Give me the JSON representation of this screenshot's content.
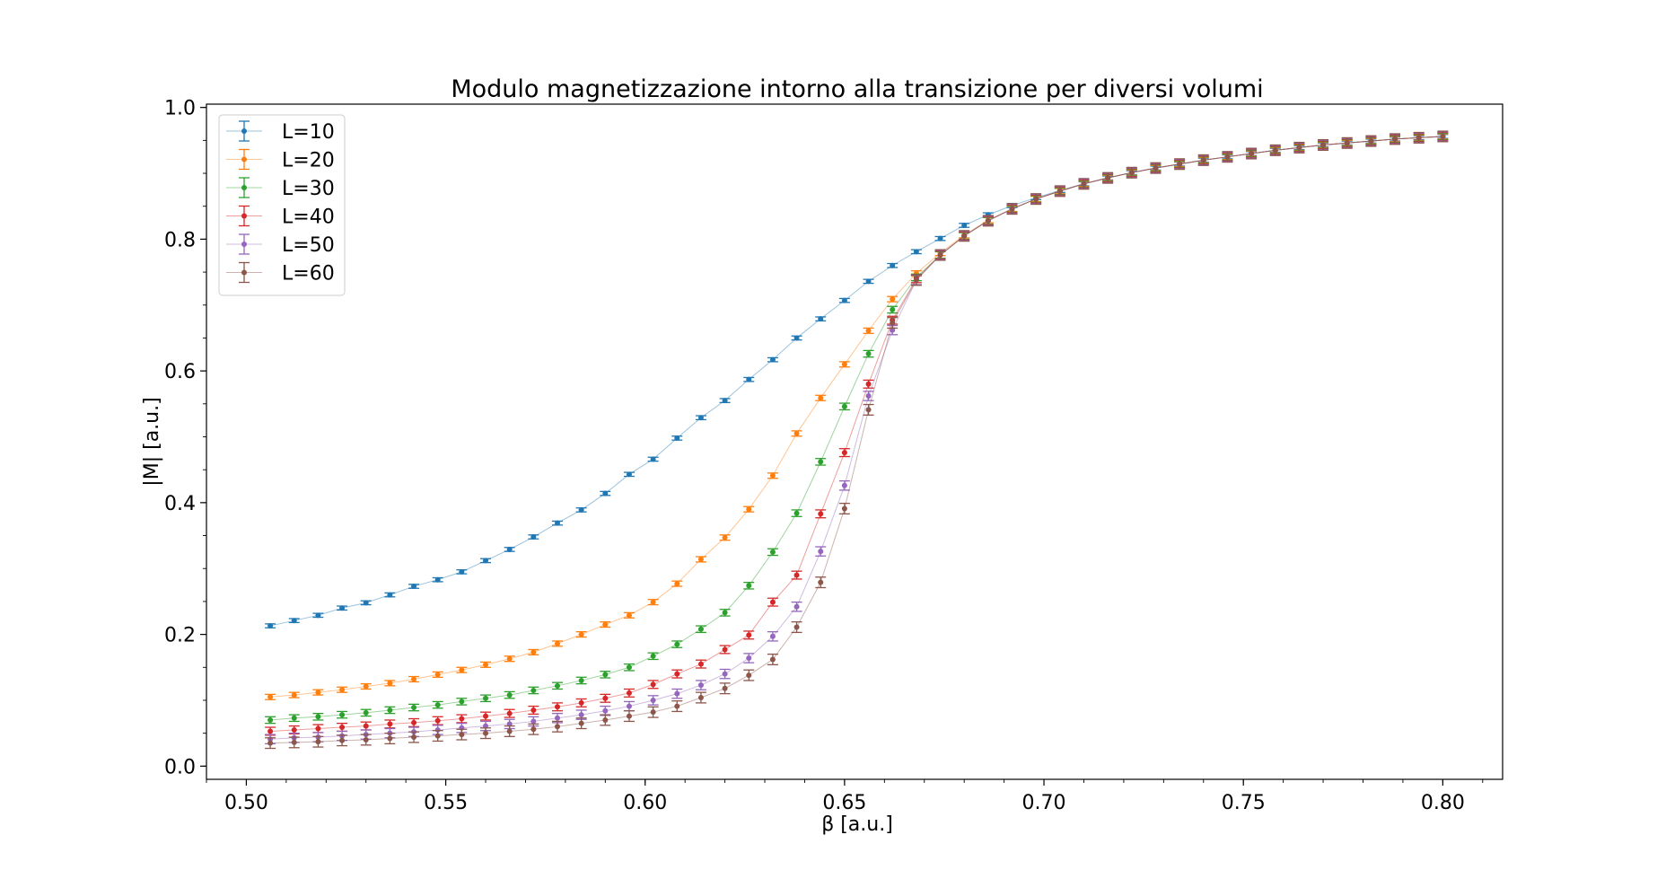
{
  "chart_data": {
    "type": "scatter",
    "title": "Modulo magnetizzazione intorno alla transizione per diversi volumi",
    "xlabel": "β [a.u.]",
    "ylabel": "|M| [a.u.]",
    "xlim": [
      0.49,
      0.815
    ],
    "ylim": [
      -0.02,
      1.005
    ],
    "xticks": [
      0.5,
      0.55,
      0.6,
      0.65,
      0.7,
      0.75,
      0.8
    ],
    "xtick_labels": [
      "0.50",
      "0.55",
      "0.60",
      "0.65",
      "0.70",
      "0.75",
      "0.80"
    ],
    "yticks": [
      0.0,
      0.2,
      0.4,
      0.6,
      0.8,
      1.0
    ],
    "ytick_labels": [
      "0.0",
      "0.2",
      "0.4",
      "0.6",
      "0.8",
      "1.0"
    ],
    "grid": false,
    "legend_position": "top-left",
    "series": [
      {
        "name": "L=10",
        "color": "#1f77b4",
        "x": [
          0.506,
          0.512,
          0.518,
          0.524,
          0.53,
          0.536,
          0.542,
          0.548,
          0.554,
          0.56,
          0.566,
          0.572,
          0.578,
          0.584,
          0.59,
          0.596,
          0.602,
          0.608,
          0.614,
          0.62,
          0.626,
          0.632,
          0.638,
          0.644,
          0.65,
          0.656,
          0.662,
          0.668,
          0.674,
          0.68,
          0.686,
          0.692,
          0.698,
          0.704,
          0.71,
          0.716,
          0.722,
          0.728,
          0.734,
          0.74,
          0.746,
          0.752,
          0.758,
          0.764,
          0.77,
          0.776,
          0.782,
          0.788,
          0.794,
          0.8
        ],
        "y": [
          0.213,
          0.221,
          0.229,
          0.24,
          0.248,
          0.26,
          0.273,
          0.283,
          0.295,
          0.312,
          0.329,
          0.348,
          0.369,
          0.389,
          0.414,
          0.443,
          0.466,
          0.498,
          0.529,
          0.555,
          0.587,
          0.617,
          0.65,
          0.679,
          0.707,
          0.736,
          0.76,
          0.781,
          0.801,
          0.821,
          0.837,
          0.851,
          0.863,
          0.874,
          0.884,
          0.893,
          0.901,
          0.908,
          0.914,
          0.92,
          0.925,
          0.93,
          0.935,
          0.939,
          0.943,
          0.946,
          0.949,
          0.952,
          0.954,
          0.956
        ],
        "err": 0.003
      },
      {
        "name": "L=20",
        "color": "#ff7f0e",
        "x": [
          0.506,
          0.512,
          0.518,
          0.524,
          0.53,
          0.536,
          0.542,
          0.548,
          0.554,
          0.56,
          0.566,
          0.572,
          0.578,
          0.584,
          0.59,
          0.596,
          0.602,
          0.608,
          0.614,
          0.62,
          0.626,
          0.632,
          0.638,
          0.644,
          0.65,
          0.656,
          0.662,
          0.668,
          0.674,
          0.68,
          0.686,
          0.692,
          0.698,
          0.704,
          0.71,
          0.716,
          0.722,
          0.728,
          0.734,
          0.74,
          0.746,
          0.752,
          0.758,
          0.764,
          0.77,
          0.776,
          0.782,
          0.788,
          0.794,
          0.8
        ],
        "y": [
          0.105,
          0.108,
          0.112,
          0.116,
          0.121,
          0.126,
          0.132,
          0.139,
          0.146,
          0.154,
          0.163,
          0.173,
          0.186,
          0.2,
          0.215,
          0.229,
          0.249,
          0.277,
          0.314,
          0.347,
          0.39,
          0.441,
          0.505,
          0.559,
          0.61,
          0.661,
          0.709,
          0.748,
          0.779,
          0.806,
          0.829,
          0.846,
          0.861,
          0.873,
          0.884,
          0.893,
          0.901,
          0.908,
          0.914,
          0.92,
          0.925,
          0.93,
          0.935,
          0.939,
          0.943,
          0.946,
          0.949,
          0.952,
          0.954,
          0.956
        ],
        "err": 0.004
      },
      {
        "name": "L=30",
        "color": "#2ca02c",
        "x": [
          0.506,
          0.512,
          0.518,
          0.524,
          0.53,
          0.536,
          0.542,
          0.548,
          0.554,
          0.56,
          0.566,
          0.572,
          0.578,
          0.584,
          0.59,
          0.596,
          0.602,
          0.608,
          0.614,
          0.62,
          0.626,
          0.632,
          0.638,
          0.644,
          0.65,
          0.656,
          0.662,
          0.668,
          0.674,
          0.68,
          0.686,
          0.692,
          0.698,
          0.704,
          0.71,
          0.716,
          0.722,
          0.728,
          0.734,
          0.74,
          0.746,
          0.752,
          0.758,
          0.764,
          0.77,
          0.776,
          0.782,
          0.788,
          0.794,
          0.8
        ],
        "y": [
          0.07,
          0.073,
          0.075,
          0.078,
          0.081,
          0.085,
          0.089,
          0.093,
          0.098,
          0.103,
          0.108,
          0.115,
          0.122,
          0.13,
          0.139,
          0.15,
          0.167,
          0.185,
          0.208,
          0.233,
          0.274,
          0.325,
          0.384,
          0.462,
          0.546,
          0.626,
          0.693,
          0.742,
          0.776,
          0.805,
          0.828,
          0.846,
          0.861,
          0.873,
          0.884,
          0.893,
          0.901,
          0.908,
          0.914,
          0.92,
          0.925,
          0.93,
          0.935,
          0.939,
          0.943,
          0.946,
          0.949,
          0.952,
          0.954,
          0.956
        ],
        "err": 0.005
      },
      {
        "name": "L=40",
        "color": "#d62728",
        "x": [
          0.506,
          0.512,
          0.518,
          0.524,
          0.53,
          0.536,
          0.542,
          0.548,
          0.554,
          0.56,
          0.566,
          0.572,
          0.578,
          0.584,
          0.59,
          0.596,
          0.602,
          0.608,
          0.614,
          0.62,
          0.626,
          0.632,
          0.638,
          0.644,
          0.65,
          0.656,
          0.662,
          0.668,
          0.674,
          0.68,
          0.686,
          0.692,
          0.698,
          0.704,
          0.71,
          0.716,
          0.722,
          0.728,
          0.734,
          0.74,
          0.746,
          0.752,
          0.758,
          0.764,
          0.77,
          0.776,
          0.782,
          0.788,
          0.794,
          0.8
        ],
        "y": [
          0.053,
          0.055,
          0.057,
          0.059,
          0.061,
          0.064,
          0.066,
          0.069,
          0.072,
          0.076,
          0.08,
          0.085,
          0.09,
          0.096,
          0.103,
          0.111,
          0.124,
          0.14,
          0.155,
          0.177,
          0.199,
          0.249,
          0.29,
          0.383,
          0.476,
          0.58,
          0.677,
          0.74,
          0.776,
          0.805,
          0.828,
          0.846,
          0.861,
          0.873,
          0.884,
          0.893,
          0.901,
          0.908,
          0.914,
          0.92,
          0.925,
          0.93,
          0.935,
          0.939,
          0.943,
          0.946,
          0.949,
          0.952,
          0.954,
          0.956
        ],
        "err": 0.006
      },
      {
        "name": "L=50",
        "color": "#9467bd",
        "x": [
          0.506,
          0.512,
          0.518,
          0.524,
          0.53,
          0.536,
          0.542,
          0.548,
          0.554,
          0.56,
          0.566,
          0.572,
          0.578,
          0.584,
          0.59,
          0.596,
          0.602,
          0.608,
          0.614,
          0.62,
          0.626,
          0.632,
          0.638,
          0.644,
          0.65,
          0.656,
          0.662,
          0.668,
          0.674,
          0.68,
          0.686,
          0.692,
          0.698,
          0.704,
          0.71,
          0.716,
          0.722,
          0.728,
          0.734,
          0.74,
          0.746,
          0.752,
          0.758,
          0.764,
          0.77,
          0.776,
          0.782,
          0.788,
          0.794,
          0.8
        ],
        "y": [
          0.041,
          0.043,
          0.044,
          0.046,
          0.048,
          0.05,
          0.052,
          0.055,
          0.058,
          0.061,
          0.064,
          0.068,
          0.073,
          0.078,
          0.084,
          0.091,
          0.1,
          0.11,
          0.123,
          0.14,
          0.164,
          0.197,
          0.242,
          0.326,
          0.426,
          0.562,
          0.662,
          0.738,
          0.776,
          0.805,
          0.828,
          0.846,
          0.861,
          0.873,
          0.884,
          0.893,
          0.901,
          0.908,
          0.914,
          0.92,
          0.925,
          0.93,
          0.935,
          0.939,
          0.943,
          0.946,
          0.949,
          0.952,
          0.954,
          0.956
        ],
        "err": 0.007
      },
      {
        "name": "L=60",
        "color": "#8c564b",
        "x": [
          0.506,
          0.512,
          0.518,
          0.524,
          0.53,
          0.536,
          0.542,
          0.548,
          0.554,
          0.56,
          0.566,
          0.572,
          0.578,
          0.584,
          0.59,
          0.596,
          0.602,
          0.608,
          0.614,
          0.62,
          0.626,
          0.632,
          0.638,
          0.644,
          0.65,
          0.656,
          0.662,
          0.668,
          0.674,
          0.68,
          0.686,
          0.692,
          0.698,
          0.704,
          0.71,
          0.716,
          0.722,
          0.728,
          0.734,
          0.74,
          0.746,
          0.752,
          0.758,
          0.764,
          0.77,
          0.776,
          0.782,
          0.788,
          0.794,
          0.8
        ],
        "y": [
          0.035,
          0.036,
          0.037,
          0.039,
          0.04,
          0.042,
          0.044,
          0.046,
          0.048,
          0.05,
          0.053,
          0.056,
          0.06,
          0.065,
          0.07,
          0.076,
          0.082,
          0.091,
          0.104,
          0.118,
          0.138,
          0.162,
          0.211,
          0.279,
          0.391,
          0.541,
          0.673,
          0.738,
          0.776,
          0.805,
          0.828,
          0.846,
          0.861,
          0.873,
          0.884,
          0.893,
          0.901,
          0.908,
          0.914,
          0.92,
          0.925,
          0.93,
          0.935,
          0.939,
          0.943,
          0.946,
          0.949,
          0.952,
          0.954,
          0.956
        ],
        "err": 0.008
      }
    ]
  }
}
